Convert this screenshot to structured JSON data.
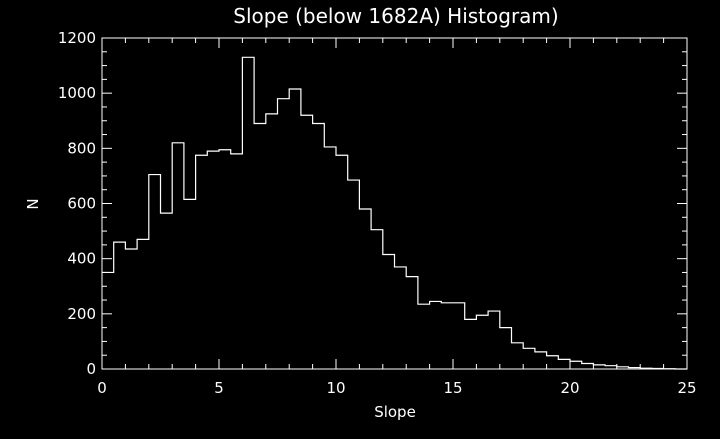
{
  "chart_data": {
    "type": "bar",
    "style": "step-histogram",
    "title": "Slope (below 1682A) Histogram)",
    "xlabel": "Slope",
    "ylabel": "N",
    "xlim": [
      0,
      25
    ],
    "ylim": [
      0,
      1200
    ],
    "bin_width": 0.5,
    "bin_start": 0,
    "xticks": [
      0,
      5,
      10,
      15,
      20,
      25
    ],
    "yticks": [
      0,
      200,
      400,
      600,
      800,
      1000,
      1200
    ],
    "values": [
      350,
      460,
      435,
      470,
      705,
      565,
      820,
      615,
      775,
      790,
      795,
      780,
      1130,
      890,
      925,
      980,
      1015,
      920,
      890,
      805,
      775,
      685,
      580,
      505,
      415,
      370,
      335,
      235,
      245,
      240,
      240,
      180,
      195,
      210,
      150,
      95,
      75,
      62,
      48,
      35,
      28,
      20,
      15,
      12,
      8,
      5,
      3,
      2,
      1,
      0
    ],
    "colors": {
      "background": "#000000",
      "foreground": "#ffffff"
    },
    "grid": false
  }
}
